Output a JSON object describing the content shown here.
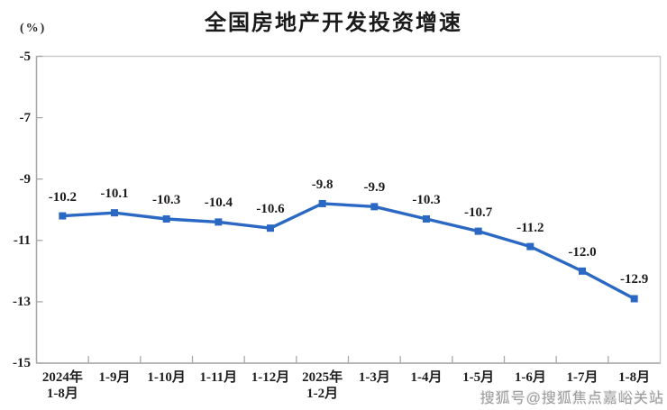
{
  "header": {
    "unit_label": "(%)"
  },
  "watermark": {
    "text": "搜狐号@搜狐焦点嘉峪关站"
  },
  "chart_data": {
    "type": "line",
    "title": "全国房地产开发投资增速",
    "ylabel": "(%)",
    "categories": [
      "2024年\n1-8月",
      "1-9月",
      "1-10月",
      "1-11月",
      "1-12月",
      "2025年\n1-2月",
      "1-3月",
      "1-4月",
      "1-5月",
      "1-6月",
      "1-7月",
      "1-8月"
    ],
    "values": [
      -10.2,
      -10.1,
      -10.3,
      -10.4,
      -10.6,
      -9.8,
      -9.9,
      -10.3,
      -10.7,
      -11.2,
      -12.0,
      -12.9
    ],
    "data_labels": [
      "-10.2",
      "-10.1",
      "-10.3",
      "-10.4",
      "-10.6",
      "-9.8",
      "-9.9",
      "-10.3",
      "-10.7",
      "-11.2",
      "-12.0",
      "-12.9"
    ],
    "ylim": [
      -15,
      -5
    ],
    "yticks": [
      -5,
      -7,
      -9,
      -11,
      -13,
      -15
    ],
    "grid": false,
    "legend": "none",
    "line_color": "#2a68c4",
    "marker": "square",
    "border_color": "#cbcbcb",
    "axis_color": "#a8a8a8"
  }
}
